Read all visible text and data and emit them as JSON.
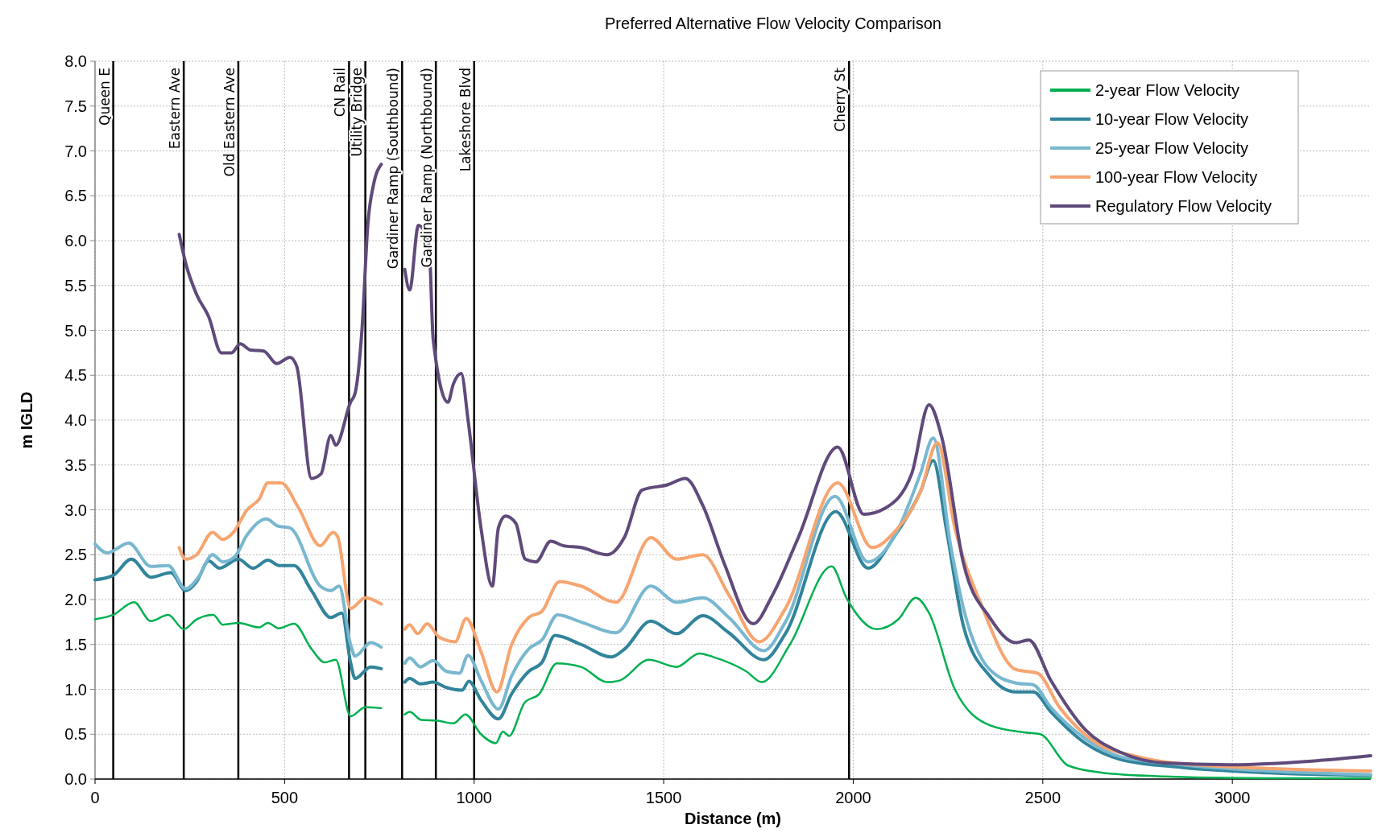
{
  "chart_data": {
    "type": "line",
    "title": "Preferred Alternative Flow Velocity Comparison",
    "xlabel": "Distance (m)",
    "ylabel": "m IGLD",
    "xlim": [
      0,
      3365
    ],
    "xticks": [
      0,
      500,
      1000,
      1500,
      2000,
      2500,
      3000
    ],
    "ylim": [
      0,
      8
    ],
    "yticks": [
      {
        "value": 0,
        "label": "0.0"
      },
      {
        "value": 0.5,
        "label": "0.5"
      },
      {
        "value": 1,
        "label": "1.0"
      },
      {
        "value": 1.5,
        "label": "1.5"
      },
      {
        "value": 2,
        "label": "2.0"
      },
      {
        "value": 2.5,
        "label": "2.5"
      },
      {
        "value": 3,
        "label": "3.0"
      },
      {
        "value": 3.5,
        "label": "3.5"
      },
      {
        "value": 4,
        "label": "4.0"
      },
      {
        "value": 4.5,
        "label": "4.5"
      },
      {
        "value": 5,
        "label": "5.0"
      },
      {
        "value": 5.5,
        "label": "5.5"
      },
      {
        "value": 6,
        "label": "6.0"
      },
      {
        "value": 6.5,
        "label": "6.5"
      },
      {
        "value": 7,
        "label": "7.0"
      },
      {
        "value": 7.5,
        "label": "7.5"
      },
      {
        "value": 8,
        "label": "8.0"
      }
    ],
    "grid": true,
    "legend": "top right",
    "line_style": "solid",
    "marker": "none",
    "series": [
      {
        "name": "2-year Flow Velocity",
        "color": "#00b050",
        "x": [
          0,
          48,
          103,
          147,
          193,
          234,
          268,
          312,
          337,
          378,
          433,
          456,
          484,
          525,
          571,
          606,
          635,
          674,
          713,
          755,
          790,
          817,
          830,
          860,
          904,
          945,
          977,
          1018,
          1057,
          1076,
          1092,
          1133,
          1172,
          1218,
          1282,
          1351,
          1385,
          1461,
          1534,
          1594,
          1631,
          1718,
          1759,
          1833,
          1943,
          1982,
          2062,
          2119,
          2165,
          2200,
          2268,
          2360,
          2452,
          2493,
          2567,
          2658,
          2819,
          3094,
          3365
        ],
        "values": [
          1.78,
          1.83,
          1.97,
          1.76,
          1.83,
          1.67,
          1.78,
          1.83,
          1.72,
          1.74,
          1.69,
          1.74,
          1.68,
          1.73,
          1.45,
          1.3,
          1.33,
          0.7,
          0.8,
          0.79,
          null,
          0.72,
          0.75,
          0.66,
          0.65,
          0.62,
          0.72,
          0.5,
          0.4,
          0.53,
          0.48,
          0.85,
          0.95,
          1.29,
          1.25,
          1.08,
          1.1,
          1.33,
          1.25,
          1.4,
          1.36,
          1.2,
          1.08,
          1.5,
          2.37,
          2.02,
          1.67,
          1.78,
          2.02,
          1.85,
          1.0,
          0.6,
          0.52,
          0.5,
          0.15,
          0.07,
          0.03,
          0.01,
          0.01
        ]
      },
      {
        "name": "10-year Flow Velocity",
        "color": "#31849b",
        "x": [
          0,
          48,
          96,
          147,
          200,
          239,
          268,
          300,
          328,
          378,
          417,
          456,
          486,
          525,
          571,
          622,
          651,
          674,
          686,
          727,
          755,
          790,
          817,
          830,
          858,
          892,
          927,
          968,
          986,
          1018,
          1064,
          1099,
          1144,
          1179,
          1213,
          1282,
          1362,
          1397,
          1466,
          1534,
          1603,
          1672,
          1764,
          1821,
          1954,
          2039,
          2108,
          2177,
          2211,
          2245,
          2291,
          2360,
          2429,
          2475,
          2521,
          2612,
          2704,
          2865,
          3094,
          3365
        ],
        "values": [
          2.22,
          2.27,
          2.45,
          2.25,
          2.3,
          2.1,
          2.2,
          2.43,
          2.35,
          2.45,
          2.35,
          2.44,
          2.38,
          2.38,
          2.1,
          1.8,
          1.85,
          1.3,
          1.12,
          1.25,
          1.23,
          null,
          1.08,
          1.12,
          1.06,
          1.08,
          1.02,
          0.99,
          1.09,
          0.88,
          0.67,
          0.95,
          1.2,
          1.3,
          1.6,
          1.5,
          1.36,
          1.45,
          1.76,
          1.62,
          1.82,
          1.63,
          1.33,
          1.62,
          2.98,
          2.35,
          2.7,
          3.2,
          3.55,
          2.8,
          1.7,
          1.15,
          0.97,
          0.97,
          0.75,
          0.4,
          0.22,
          0.13,
          0.07,
          0.04
        ]
      },
      {
        "name": "25-year Flow Velocity",
        "color": "#78b7d0",
        "x": [
          0,
          32,
          89,
          147,
          193,
          239,
          273,
          310,
          337,
          369,
          401,
          452,
          482,
          514,
          594,
          622,
          644,
          674,
          686,
          727,
          755,
          790,
          817,
          830,
          858,
          892,
          927,
          961,
          984,
          1018,
          1064,
          1099,
          1144,
          1179,
          1220,
          1282,
          1374,
          1466,
          1534,
          1603,
          1672,
          1764,
          1821,
          1952,
          2039,
          2108,
          2177,
          2211,
          2257,
          2291,
          2360,
          2429,
          2475,
          2521,
          2612,
          2704,
          2865,
          3094,
          3365
        ],
        "values": [
          2.62,
          2.52,
          2.63,
          2.37,
          2.38,
          2.12,
          2.25,
          2.5,
          2.42,
          2.48,
          2.72,
          2.9,
          2.82,
          2.8,
          2.15,
          2.1,
          2.15,
          1.5,
          1.37,
          1.52,
          1.47,
          null,
          1.29,
          1.35,
          1.25,
          1.32,
          1.2,
          1.18,
          1.38,
          1.1,
          0.78,
          1.15,
          1.45,
          1.55,
          1.83,
          1.75,
          1.63,
          2.15,
          1.97,
          2.02,
          1.8,
          1.43,
          1.75,
          3.15,
          2.42,
          2.7,
          3.4,
          3.8,
          2.6,
          1.9,
          1.22,
          1.07,
          1.05,
          0.8,
          0.45,
          0.25,
          0.16,
          0.09,
          0.05
        ]
      },
      {
        "name": "100-year Flow Velocity",
        "color": "#f6a570",
        "x": [
          222,
          239,
          268,
          310,
          337,
          365,
          401,
          433,
          456,
          491,
          537,
          594,
          628,
          640,
          674,
          713,
          755,
          790,
          817,
          830,
          851,
          876,
          908,
          950,
          979,
          1018,
          1060,
          1099,
          1144,
          1179,
          1225,
          1282,
          1374,
          1466,
          1534,
          1603,
          1672,
          1752,
          1821,
          1959,
          2050,
          2108,
          2177,
          2222,
          2268,
          2337,
          2429,
          2486,
          2544,
          2635,
          2750,
          2934,
          3365
        ],
        "values": [
          2.58,
          2.45,
          2.5,
          2.75,
          2.67,
          2.75,
          3.0,
          3.12,
          3.3,
          3.3,
          3.02,
          2.6,
          2.75,
          2.7,
          1.9,
          2.02,
          1.95,
          null,
          1.67,
          1.72,
          1.62,
          1.73,
          1.58,
          1.53,
          1.79,
          1.42,
          0.97,
          1.5,
          1.8,
          1.87,
          2.2,
          2.15,
          1.97,
          2.69,
          2.45,
          2.5,
          2.05,
          1.53,
          1.9,
          3.3,
          2.58,
          2.75,
          3.2,
          3.75,
          2.8,
          1.95,
          1.22,
          1.18,
          0.8,
          0.42,
          0.25,
          0.15,
          0.09
        ]
      },
      {
        "name": "Regulatory Flow Velocity",
        "color": "#604a7b",
        "x": [
          222,
          239,
          268,
          300,
          333,
          360,
          383,
          411,
          445,
          479,
          514,
          532,
          571,
          596,
          622,
          635,
          674,
          686,
          704,
          720,
          736,
          755,
          790,
          817,
          830,
          853,
          881,
          892,
          931,
          945,
          966,
          984,
          1018,
          1048,
          1064,
          1083,
          1110,
          1135,
          1163,
          1202,
          1236,
          1282,
          1351,
          1397,
          1443,
          1511,
          1557,
          1603,
          1660,
          1736,
          1787,
          1856,
          1959,
          2028,
          2085,
          2154,
          2200,
          2234,
          2291,
          2360,
          2429,
          2463,
          2521,
          2612,
          2704,
          2819,
          3000,
          3209,
          3365
        ],
        "values": [
          6.07,
          5.75,
          5.4,
          5.15,
          4.75,
          4.75,
          4.85,
          4.78,
          4.77,
          4.63,
          4.7,
          4.6,
          3.35,
          3.4,
          3.83,
          3.72,
          4.2,
          4.3,
          5.0,
          6.2,
          6.65,
          6.85,
          null,
          5.68,
          5.45,
          6.17,
          5.95,
          4.9,
          4.2,
          4.4,
          4.52,
          4.0,
          2.8,
          2.15,
          2.8,
          2.93,
          2.85,
          2.45,
          2.42,
          2.65,
          2.6,
          2.58,
          2.5,
          2.7,
          3.22,
          3.28,
          3.35,
          3.05,
          2.4,
          1.73,
          2.05,
          2.7,
          3.7,
          2.95,
          3.02,
          3.4,
          4.17,
          3.8,
          2.4,
          1.8,
          1.52,
          1.55,
          1.1,
          0.55,
          0.3,
          0.18,
          0.16,
          0.2,
          0.26
        ]
      }
    ],
    "ref_lines": [
      {
        "axis": "x",
        "value": 48,
        "label": "Queen E"
      },
      {
        "axis": "x",
        "value": 234,
        "label": "Eastern Ave"
      },
      {
        "axis": "x",
        "value": 378,
        "label": "Old Eastern Ave"
      },
      {
        "axis": "x",
        "value": 670,
        "label": "CN Rail"
      },
      {
        "axis": "x",
        "value": 713,
        "label": "Utility Bridge"
      },
      {
        "axis": "x",
        "value": 810,
        "label": "Gardiner Ramp (Southbound)"
      },
      {
        "axis": "x",
        "value": 899,
        "label": "Gardiner Ramp (Northbound)"
      },
      {
        "axis": "x",
        "value": 1000,
        "label": "Lakeshore Blvd"
      },
      {
        "axis": "x",
        "value": 1989,
        "label": "Cherry St"
      }
    ]
  }
}
